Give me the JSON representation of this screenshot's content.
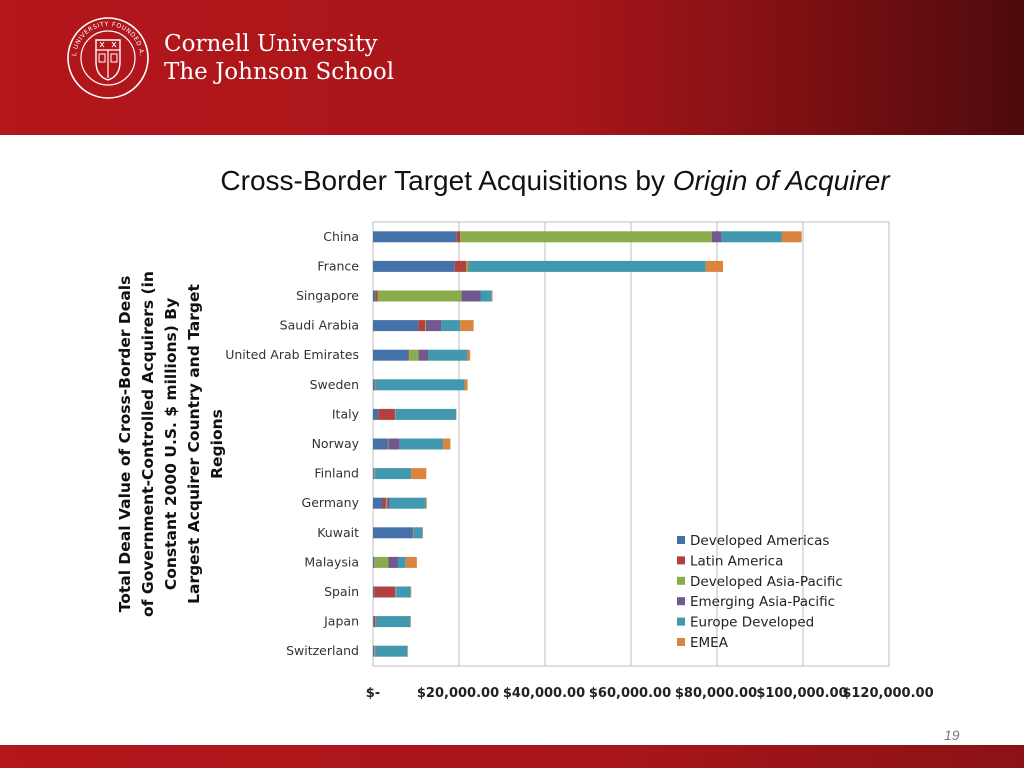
{
  "header": {
    "brand_line1": "Cornell University",
    "brand_line2": "The Johnson School",
    "seal_text": "CORNELL UNIVERSITY FOUNDED A.D. 1865",
    "bg_color": "#b3161b"
  },
  "slide": {
    "title_main": "Cross-Border Target Acquisitions by ",
    "title_italic": "Origin of Acquirer",
    "page_number": "19"
  },
  "colors": {
    "Developed Americas": "#4472a8",
    "Latin America": "#b0413e",
    "Developed Asia-Pacific": "#8aac4a",
    "Emerging Asia-Pacific": "#71588f",
    "Europe Developed": "#4198af",
    "EMEA": "#db843d"
  },
  "chart_data": {
    "type": "bar",
    "orientation": "horizontal",
    "stacked": true,
    "ylabel": "Total Deal Value of Cross-Border Deals of Government-Controlled Acquirers (in Constant 2000 U.S. $ millions) By Largest Acquirer Country and Target Regions",
    "xlabel": "",
    "xlim": [
      0,
      120000
    ],
    "xticks": [
      0,
      20000,
      40000,
      60000,
      80000,
      100000,
      120000
    ],
    "xtick_labels": [
      "$-",
      "$20,000.00",
      "$40,000.00",
      "$60,000.00",
      "$80,000.00",
      "$100,000.00",
      "$120,000.00"
    ],
    "grid": "vertical",
    "legend_position": "bottom-right",
    "categories": [
      "China",
      "France",
      "Singapore",
      "Saudi Arabia",
      "United Arab Emirates",
      "Sweden",
      "Italy",
      "Norway",
      "Finland",
      "Germany",
      "Kuwait",
      "Malaysia",
      "Spain",
      "Japan",
      "Switzerland"
    ],
    "series": [
      {
        "name": "Developed Americas",
        "values": [
          19500,
          19000,
          500,
          10500,
          8200,
          400,
          1200,
          3400,
          200,
          2200,
          9200,
          300,
          300,
          200,
          300
        ]
      },
      {
        "name": "Latin America",
        "values": [
          800,
          2700,
          600,
          1600,
          200,
          100,
          3900,
          100,
          100,
          800,
          100,
          100,
          4900,
          300,
          100
        ]
      },
      {
        "name": "Developed Asia-Pacific",
        "values": [
          58500,
          500,
          19500,
          200,
          2200,
          100,
          100,
          100,
          100,
          300,
          100,
          3200,
          100,
          100,
          100
        ]
      },
      {
        "name": "Emerging Asia-Pacific",
        "values": [
          2300,
          200,
          4400,
          3600,
          2200,
          100,
          100,
          2600,
          100,
          600,
          100,
          2200,
          100,
          100,
          100
        ]
      },
      {
        "name": "Europe Developed",
        "values": [
          14000,
          55000,
          2600,
          4400,
          9200,
          20600,
          14000,
          10100,
          8400,
          8400,
          2000,
          1800,
          3400,
          8000,
          7400
        ]
      },
      {
        "name": "EMEA",
        "values": [
          4600,
          4000,
          200,
          3100,
          600,
          700,
          100,
          1700,
          3500,
          200,
          100,
          2600,
          100,
          100,
          100
        ]
      }
    ]
  }
}
